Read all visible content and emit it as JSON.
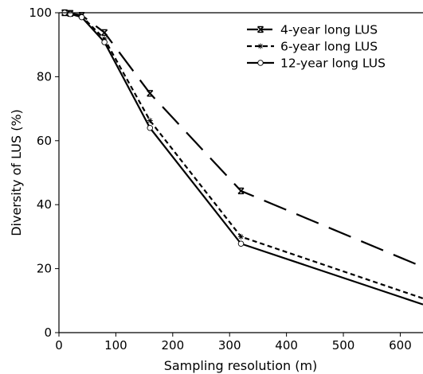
{
  "chart_data": {
    "type": "line",
    "xlabel": "Sampling resolution (m)",
    "ylabel": "Diversity of LUS (%)",
    "xlim": [
      0,
      640
    ],
    "ylim": [
      0,
      100
    ],
    "xticks": [
      0,
      100,
      200,
      300,
      400,
      500,
      600
    ],
    "yticks": [
      0,
      20,
      40,
      60,
      80,
      100
    ],
    "grid": false,
    "legend_position": "top-right",
    "series": [
      {
        "name": "4-year long LUS",
        "line_style": "long-dash",
        "marker": "x",
        "x": [
          10,
          20,
          40,
          80,
          160,
          320,
          640
        ],
        "y": [
          100,
          99.8,
          99.2,
          93.8,
          74.8,
          44.3,
          20.5
        ]
      },
      {
        "name": "6-year long LUS",
        "line_style": "short-dash",
        "marker": "star",
        "x": [
          10,
          20,
          40,
          80,
          160,
          320,
          640
        ],
        "y": [
          100,
          99.7,
          98.9,
          91.8,
          66.3,
          30.0,
          10.7
        ]
      },
      {
        "name": "12-year long LUS",
        "line_style": "solid",
        "marker": "circle",
        "x": [
          10,
          20,
          40,
          80,
          160,
          320,
          640
        ],
        "y": [
          100,
          99.6,
          98.6,
          90.8,
          64.0,
          27.8,
          8.8
        ]
      }
    ]
  }
}
